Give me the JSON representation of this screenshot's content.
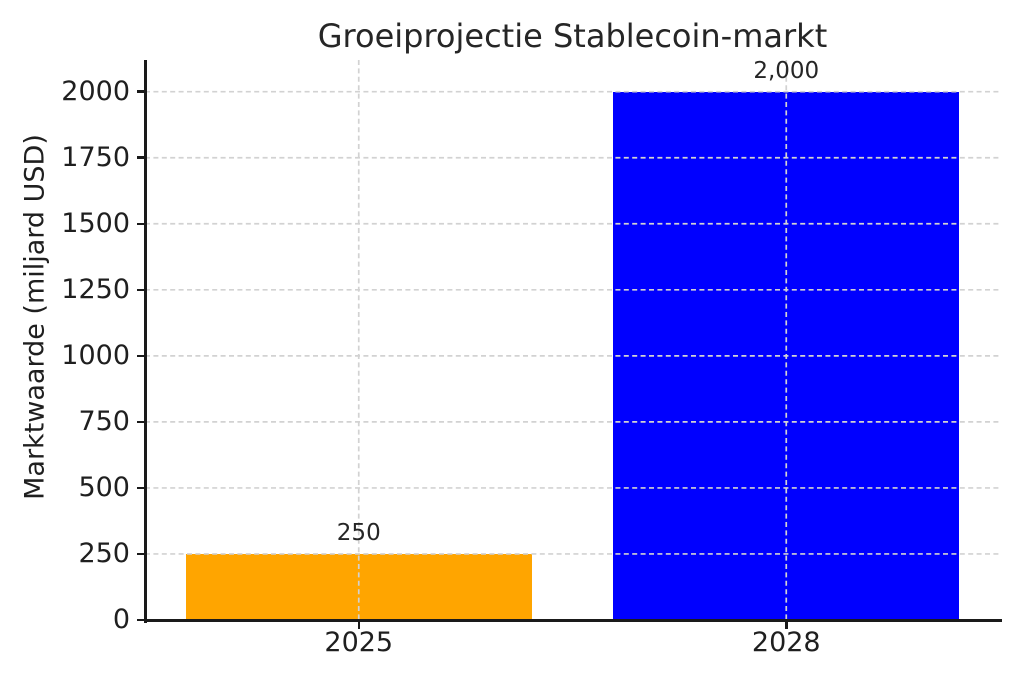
{
  "figure": {
    "background": "#ffffff",
    "text_color": "#1f1f1f"
  },
  "chart_data": {
    "type": "bar",
    "title": "Groeiprojectie Stablecoin-markt",
    "xlabel": "",
    "ylabel": "Marktwaarde (miljard USD)",
    "categories": [
      "2025",
      "2028"
    ],
    "values": [
      250,
      2000
    ],
    "value_labels": [
      "250",
      "2,000"
    ],
    "bar_colors": [
      "#FFA500",
      "#0000FF"
    ],
    "ylim": [
      0,
      2120
    ],
    "yticks": [
      0,
      250,
      500,
      750,
      1000,
      1250,
      1500,
      1750,
      2000
    ],
    "legend": "none",
    "grid": {
      "horizontal": true,
      "vertical": true,
      "style": "dashed",
      "color": "#d2d2d2",
      "on_top_of_bars": true
    },
    "spines": {
      "left": true,
      "bottom": true,
      "top": false,
      "right": false,
      "color": "#1a1a1a"
    }
  }
}
